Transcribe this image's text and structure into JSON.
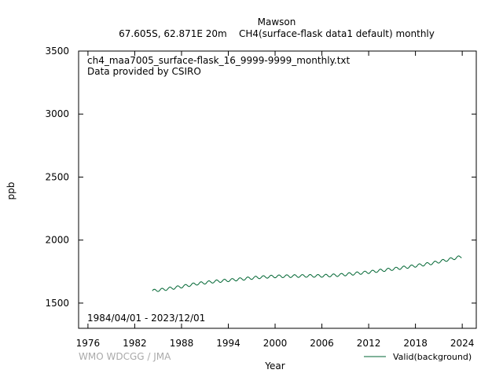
{
  "chart_data": {
    "type": "line",
    "title": "Mawson",
    "subtitle": "67.605S, 62.871E 20m    CH4(surface-flask data1 default) monthly",
    "file_label": "ch4_maa7005_surface-flask_16_9999-9999_monthly.txt",
    "provider_label": "Data provided by CSIRO",
    "date_range_label": "1984/04/01 - 2023/12/01",
    "credit": "WMO WDCGG / JMA",
    "xlabel": "Year",
    "ylabel": "ppb",
    "xlim": [
      1974.8,
      2025.8
    ],
    "ylim": [
      1300,
      3500
    ],
    "x_ticks": [
      1976,
      1982,
      1988,
      1994,
      2000,
      2006,
      2012,
      2018,
      2024
    ],
    "y_ticks": [
      1500,
      2000,
      2500,
      3000,
      3500
    ],
    "grid": false,
    "legend_position": "bottom-right",
    "series": [
      {
        "name": "Valid(background)",
        "color": "#006633",
        "start": "1984-04",
        "end": "2023-12",
        "annual_trend": [
          [
            1984,
            1595
          ],
          [
            1986,
            1611
          ],
          [
            1988,
            1631
          ],
          [
            1990,
            1654
          ],
          [
            1992,
            1670
          ],
          [
            1994,
            1681
          ],
          [
            1996,
            1693
          ],
          [
            1998,
            1705
          ],
          [
            2000,
            1712
          ],
          [
            2002,
            1714
          ],
          [
            2004,
            1716
          ],
          [
            2006,
            1716
          ],
          [
            2008,
            1722
          ],
          [
            2010,
            1733
          ],
          [
            2012,
            1746
          ],
          [
            2014,
            1762
          ],
          [
            2016,
            1778
          ],
          [
            2018,
            1796
          ],
          [
            2020,
            1815
          ],
          [
            2022,
            1842
          ],
          [
            2024,
            1870
          ]
        ],
        "seasonal_amplitude": 11
      }
    ]
  }
}
